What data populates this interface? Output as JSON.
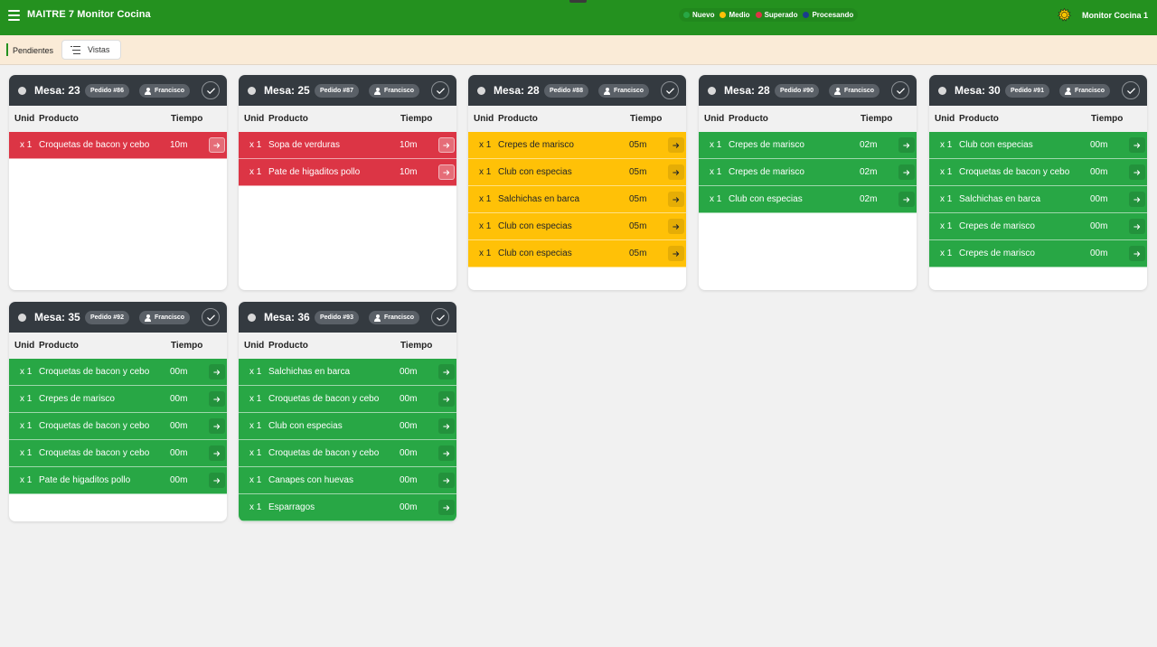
{
  "header": {
    "title": "MAITRE 7 Monitor Cocina",
    "monitor_name": "Monitor Cocina 1",
    "legend": [
      {
        "label": "Nuevo",
        "color": "#28a745"
      },
      {
        "label": "Medio",
        "color": "#ffc107"
      },
      {
        "label": "Superado",
        "color": "#dc3545"
      },
      {
        "label": "Procesando",
        "color": "#1a3c8c"
      }
    ]
  },
  "subbar": {
    "pendientes_label": "Pendientes",
    "vistas_label": "Vistas"
  },
  "columns": {
    "unid": "Unid",
    "producto": "Producto",
    "tiempo": "Tiempo"
  },
  "cards": [
    {
      "mesa": "Mesa: 23",
      "pedido": "Pedido #86",
      "user": "Francisco",
      "items": [
        {
          "qty": "x 1",
          "product": "Croquetas de bacon y cebo",
          "time": "10m",
          "status": "red"
        }
      ]
    },
    {
      "mesa": "Mesa: 25",
      "pedido": "Pedido #87",
      "user": "Francisco",
      "items": [
        {
          "qty": "x 1",
          "product": "Sopa de verduras",
          "time": "10m",
          "status": "red"
        },
        {
          "qty": "x 1",
          "product": "Pate de higaditos pollo",
          "time": "10m",
          "status": "red"
        }
      ]
    },
    {
      "mesa": "Mesa: 28",
      "pedido": "Pedido #88",
      "user": "Francisco",
      "items": [
        {
          "qty": "x 1",
          "product": "Crepes de marisco",
          "time": "05m",
          "status": "yellow"
        },
        {
          "qty": "x 1",
          "product": "Club con especias",
          "time": "05m",
          "status": "yellow"
        },
        {
          "qty": "x 1",
          "product": "Salchichas en barca",
          "time": "05m",
          "status": "yellow"
        },
        {
          "qty": "x 1",
          "product": "Club con especias",
          "time": "05m",
          "status": "yellow"
        },
        {
          "qty": "x 1",
          "product": "Club con especias",
          "time": "05m",
          "status": "yellow"
        }
      ]
    },
    {
      "mesa": "Mesa: 28",
      "pedido": "Pedido #90",
      "user": "Francisco",
      "items": [
        {
          "qty": "x 1",
          "product": "Crepes de marisco",
          "time": "02m",
          "status": "green"
        },
        {
          "qty": "x 1",
          "product": "Crepes de marisco",
          "time": "02m",
          "status": "green"
        },
        {
          "qty": "x 1",
          "product": "Club con especias",
          "time": "02m",
          "status": "green"
        }
      ]
    },
    {
      "mesa": "Mesa: 30",
      "pedido": "Pedido #91",
      "user": "Francisco",
      "items": [
        {
          "qty": "x 1",
          "product": "Club con especias",
          "time": "00m",
          "status": "green"
        },
        {
          "qty": "x 1",
          "product": "Croquetas de bacon y cebo",
          "time": "00m",
          "status": "green"
        },
        {
          "qty": "x 1",
          "product": "Salchichas en barca",
          "time": "00m",
          "status": "green"
        },
        {
          "qty": "x 1",
          "product": "Crepes de marisco",
          "time": "00m",
          "status": "green"
        },
        {
          "qty": "x 1",
          "product": "Crepes de marisco",
          "time": "00m",
          "status": "green"
        }
      ]
    },
    {
      "mesa": "Mesa: 35",
      "pedido": "Pedido #92",
      "user": "Francisco",
      "items": [
        {
          "qty": "x 1",
          "product": "Croquetas de bacon y cebo",
          "time": "00m",
          "status": "green"
        },
        {
          "qty": "x 1",
          "product": "Crepes de marisco",
          "time": "00m",
          "status": "green"
        },
        {
          "qty": "x 1",
          "product": "Croquetas de bacon y cebo",
          "time": "00m",
          "status": "green"
        },
        {
          "qty": "x 1",
          "product": "Croquetas de bacon y cebo",
          "time": "00m",
          "status": "green"
        },
        {
          "qty": "x 1",
          "product": "Pate de higaditos pollo",
          "time": "00m",
          "status": "green"
        }
      ]
    },
    {
      "mesa": "Mesa: 36",
      "pedido": "Pedido #93",
      "user": "Francisco",
      "items": [
        {
          "qty": "x 1",
          "product": "Salchichas en barca",
          "time": "00m",
          "status": "green"
        },
        {
          "qty": "x 1",
          "product": "Croquetas de bacon y cebo",
          "time": "00m",
          "status": "green"
        },
        {
          "qty": "x 1",
          "product": "Club con especias",
          "time": "00m",
          "status": "green"
        },
        {
          "qty": "x 1",
          "product": "Croquetas de bacon y cebo",
          "time": "00m",
          "status": "green"
        },
        {
          "qty": "x 1",
          "product": "Canapes con huevas",
          "time": "00m",
          "status": "green"
        },
        {
          "qty": "x 1",
          "product": "Esparragos",
          "time": "00m",
          "status": "green"
        }
      ]
    }
  ]
}
